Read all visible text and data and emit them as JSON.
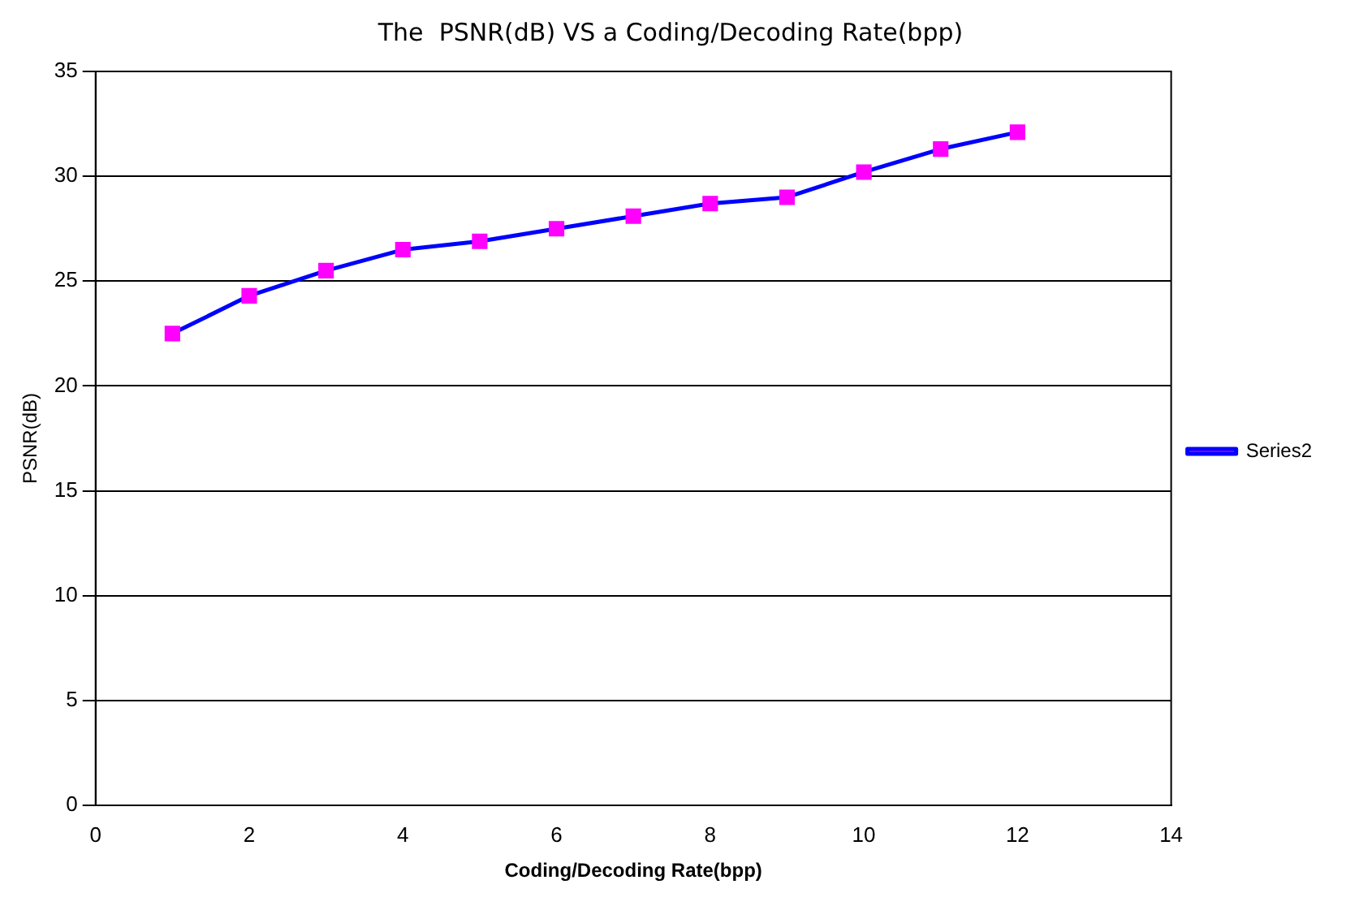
{
  "chart_data": {
    "type": "line",
    "title": "The  PSNR(dB) VS a Coding/Decoding Rate(bpp)",
    "xlabel": "Coding/Decoding Rate(bpp)",
    "ylabel": "PSNR(dB)",
    "x": [
      1,
      2,
      3,
      4,
      5,
      6,
      7,
      8,
      9,
      10,
      11,
      12
    ],
    "series": [
      {
        "name": "Series2",
        "color": "#0000ff",
        "values": [
          22.5,
          24.3,
          25.5,
          26.5,
          26.9,
          27.5,
          28.1,
          28.7,
          29.0,
          30.2,
          31.3,
          32.1
        ]
      }
    ],
    "xlim": [
      0,
      14
    ],
    "xticks": [
      0,
      2,
      4,
      6,
      8,
      10,
      12,
      14
    ],
    "ylim": [
      0,
      35
    ],
    "yticks": [
      0,
      5,
      10,
      15,
      20,
      25,
      30,
      35
    ],
    "grid": "y",
    "legend": "right",
    "marker": "square",
    "line_style": "solid"
  }
}
